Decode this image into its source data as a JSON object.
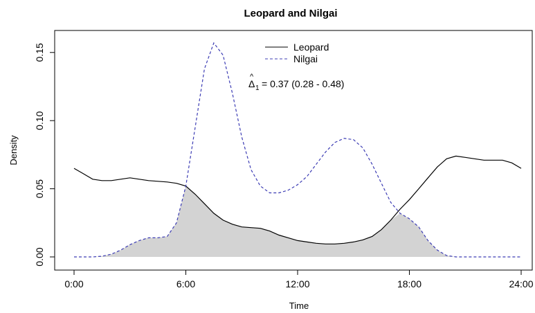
{
  "chart_data": {
    "type": "area",
    "title": "Leopard and Nilgai",
    "xlabel": "Time",
    "ylabel": "Density",
    "xlim": [
      0,
      24
    ],
    "ylim": [
      0,
      0.16
    ],
    "x_ticks": [
      0,
      6,
      12,
      18,
      24
    ],
    "x_tick_labels": [
      "0:00",
      "6:00",
      "12:00",
      "18:00",
      "24:00"
    ],
    "y_ticks": [
      0,
      0.05,
      0.1,
      0.15
    ],
    "y_tick_labels": [
      "0.00",
      "0.05",
      "0.10",
      "0.15"
    ],
    "grid": false,
    "legend_position": "top-center",
    "overlap_fill_color": "#d3d3d3",
    "annotation": {
      "delta_symbol": "Δ",
      "hat": "^",
      "subscript": "1",
      "text": "= 0.37 (0.28 - 0.48)"
    },
    "series": [
      {
        "name": "Leopard",
        "color": "#000000",
        "line_style": "solid",
        "x": [
          0,
          0.5,
          1,
          1.5,
          2,
          2.5,
          3,
          3.5,
          4,
          4.5,
          5,
          5.5,
          6,
          6.5,
          7,
          7.5,
          8,
          8.5,
          9,
          9.5,
          10,
          10.5,
          11,
          11.5,
          12,
          12.5,
          13,
          13.5,
          14,
          14.5,
          15,
          15.5,
          16,
          16.5,
          17,
          17.5,
          18,
          18.5,
          19,
          19.5,
          20,
          20.5,
          21,
          21.5,
          22,
          22.5,
          23,
          23.5,
          24
        ],
        "y": [
          0.065,
          0.061,
          0.057,
          0.056,
          0.056,
          0.057,
          0.058,
          0.057,
          0.056,
          0.0555,
          0.055,
          0.054,
          0.052,
          0.046,
          0.039,
          0.032,
          0.027,
          0.024,
          0.022,
          0.0215,
          0.021,
          0.019,
          0.016,
          0.014,
          0.012,
          0.011,
          0.01,
          0.0095,
          0.0095,
          0.01,
          0.011,
          0.0125,
          0.015,
          0.02,
          0.027,
          0.035,
          0.042,
          0.05,
          0.058,
          0.066,
          0.072,
          0.074,
          0.073,
          0.072,
          0.071,
          0.071,
          0.071,
          0.069,
          0.065
        ]
      },
      {
        "name": "Nilgai",
        "color": "#3c3cb4",
        "line_style": "dashed",
        "x": [
          0,
          0.5,
          1,
          1.5,
          2,
          2.5,
          3,
          3.5,
          4,
          4.5,
          5,
          5.5,
          6,
          6.5,
          7,
          7.5,
          8,
          8.5,
          9,
          9.5,
          10,
          10.5,
          11,
          11.5,
          12,
          12.5,
          13,
          13.5,
          14,
          14.5,
          15,
          15.5,
          16,
          16.5,
          17,
          17.5,
          18,
          18.5,
          19,
          19.5,
          20,
          20.5,
          21,
          21.5,
          22,
          22.5,
          23,
          23.5,
          24
        ],
        "y": [
          0,
          0,
          0,
          0.0005,
          0.002,
          0.005,
          0.009,
          0.012,
          0.014,
          0.014,
          0.015,
          0.025,
          0.052,
          0.095,
          0.138,
          0.157,
          0.148,
          0.12,
          0.088,
          0.064,
          0.052,
          0.047,
          0.047,
          0.049,
          0.053,
          0.059,
          0.068,
          0.077,
          0.084,
          0.087,
          0.086,
          0.08,
          0.068,
          0.054,
          0.04,
          0.032,
          0.028,
          0.022,
          0.012,
          0.005,
          0.001,
          0,
          0,
          0,
          0,
          0,
          0,
          0,
          0
        ]
      }
    ]
  }
}
